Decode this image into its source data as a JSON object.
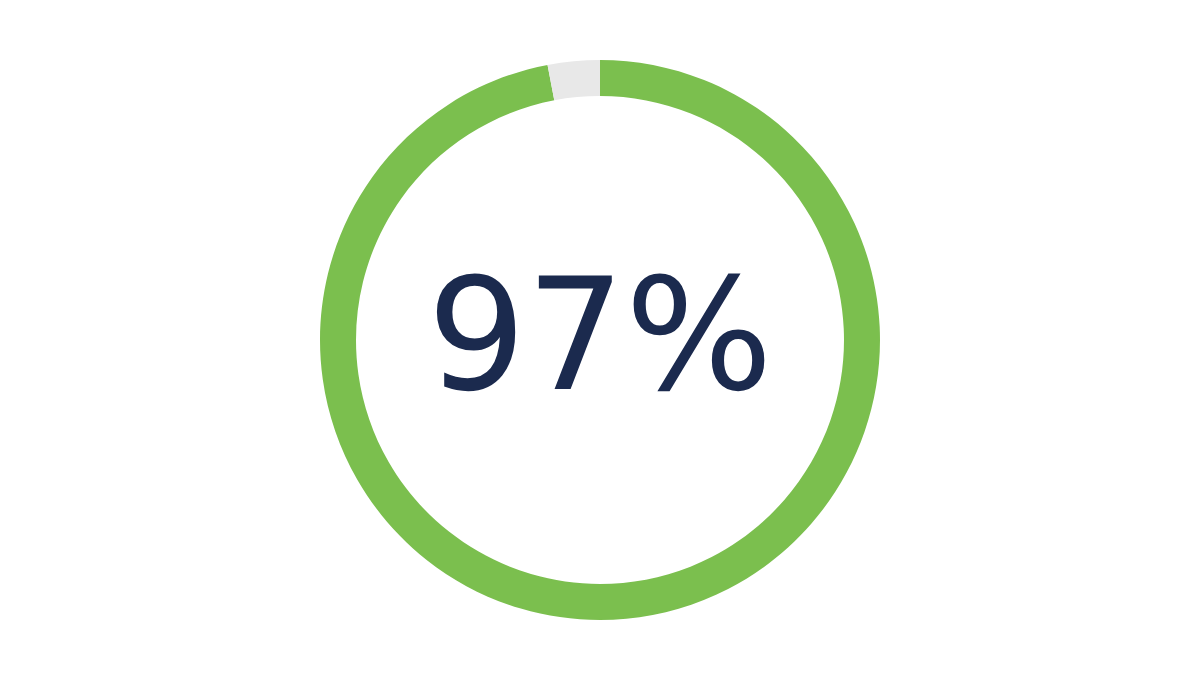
{
  "chart_data": {
    "type": "donut",
    "categories": [
      null,
      null
    ],
    "values": [
      97,
      3
    ],
    "colors": [
      "#7bbf4e",
      "#e8e8e8"
    ],
    "annotations": [
      "97%"
    ]
  }
}
